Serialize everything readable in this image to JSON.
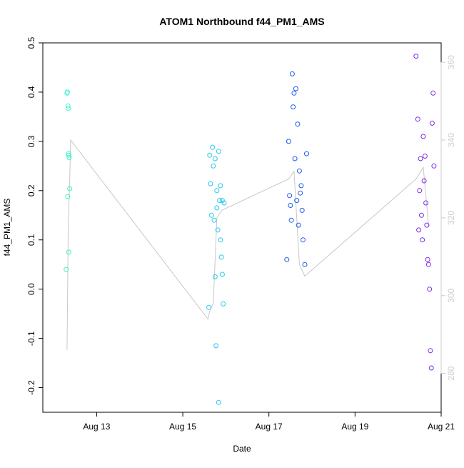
{
  "chart_data": {
    "type": "scatter",
    "title": "ATOM1 Northbound f44_PM1_AMS",
    "xlabel": "Date",
    "ylabel": "f44_PM1_AMS",
    "x_range": [
      "2016-08-11T18:00",
      "2016-08-21T00:00"
    ],
    "x_ticks": [
      "Aug 13",
      "Aug 15",
      "Aug 17",
      "Aug 19",
      "Aug 21"
    ],
    "ylim": [
      -0.25,
      0.5
    ],
    "y_ticks": [
      "-0.2",
      "-0.1",
      "0.0",
      "0.1",
      "0.2",
      "0.3",
      "0.4",
      "0.5"
    ],
    "y2lim": [
      270,
      365
    ],
    "y2_ticks": [
      "280",
      "300",
      "320",
      "340",
      "360"
    ],
    "y2_color": "#cccccc",
    "line_color": "#c8c8c8",
    "marker": "open-circle",
    "grid": false,
    "point_colors": [
      "#3cf5c8",
      "#25c8f0",
      "#1e5af0",
      "#7a2ae6"
    ],
    "altitude_series": [
      [
        "2016-08-12T07:30",
        286
      ],
      [
        "2016-08-12T08:10",
        318
      ],
      [
        "2016-08-12T09:00",
        330
      ],
      [
        "2016-08-12T09:30",
        340
      ],
      [
        "2016-08-15T14:00",
        294
      ],
      [
        "2016-08-15T15:00",
        296
      ],
      [
        "2016-08-15T17:00",
        298
      ],
      [
        "2016-08-15T19:00",
        320
      ],
      [
        "2016-08-15T22:00",
        322
      ],
      [
        "2016-08-17T11:00",
        330
      ],
      [
        "2016-08-17T14:00",
        332
      ],
      [
        "2016-08-17T17:00",
        308
      ],
      [
        "2016-08-17T20:00",
        305
      ],
      [
        "2016-08-20T10:00",
        330
      ],
      [
        "2016-08-20T14:00",
        333
      ],
      [
        "2016-08-20T17:00",
        318
      ]
    ],
    "points": [
      [
        "2016-08-12T07:00",
        0.04
      ],
      [
        "2016-08-12T07:30",
        0.398
      ],
      [
        "2016-08-12T07:40",
        0.4
      ],
      [
        "2016-08-12T08:00",
        0.372
      ],
      [
        "2016-08-12T08:10",
        0.367
      ],
      [
        "2016-08-12T08:20",
        0.275
      ],
      [
        "2016-08-12T08:30",
        0.272
      ],
      [
        "2016-08-12T08:40",
        0.267
      ],
      [
        "2016-08-12T07:50",
        0.188
      ],
      [
        "2016-08-12T09:00",
        0.204
      ],
      [
        "2016-08-12T08:30",
        0.075
      ],
      [
        "2016-08-15T14:30",
        -0.037
      ],
      [
        "2016-08-15T15:00",
        0.272
      ],
      [
        "2016-08-15T15:30",
        0.214
      ],
      [
        "2016-08-15T16:00",
        0.15
      ],
      [
        "2016-08-15T16:30",
        0.288
      ],
      [
        "2016-08-15T17:00",
        0.25
      ],
      [
        "2016-08-15T17:30",
        0.14
      ],
      [
        "2016-08-15T18:00",
        0.025
      ],
      [
        "2016-08-15T18:30",
        -0.115
      ],
      [
        "2016-08-15T19:00",
        0.2
      ],
      [
        "2016-08-15T19:30",
        0.12
      ],
      [
        "2016-08-15T20:00",
        0.28
      ],
      [
        "2016-08-15T20:30",
        0.18
      ],
      [
        "2016-08-15T21:00",
        0.1
      ],
      [
        "2016-08-15T21:30",
        0.065
      ],
      [
        "2016-08-15T22:00",
        0.03
      ],
      [
        "2016-08-15T22:30",
        -0.03
      ],
      [
        "2016-08-15T23:00",
        0.175
      ],
      [
        "2016-08-15T20:00",
        -0.23
      ],
      [
        "2016-08-15T18:00",
        0.265
      ],
      [
        "2016-08-15T19:00",
        0.165
      ],
      [
        "2016-08-15T21:00",
        0.21
      ],
      [
        "2016-08-15T22:00",
        0.18
      ],
      [
        "2016-08-17T10:00",
        0.06
      ],
      [
        "2016-08-17T11:00",
        0.3
      ],
      [
        "2016-08-17T12:00",
        0.17
      ],
      [
        "2016-08-17T13:00",
        0.437
      ],
      [
        "2016-08-17T14:00",
        0.398
      ],
      [
        "2016-08-17T15:00",
        0.407
      ],
      [
        "2016-08-17T16:00",
        0.335
      ],
      [
        "2016-08-17T17:00",
        0.24
      ],
      [
        "2016-08-17T18:00",
        0.21
      ],
      [
        "2016-08-17T19:00",
        0.1
      ],
      [
        "2016-08-17T20:00",
        0.05
      ],
      [
        "2016-08-17T21:00",
        0.275
      ],
      [
        "2016-08-17T13:30",
        0.37
      ],
      [
        "2016-08-17T14:30",
        0.265
      ],
      [
        "2016-08-17T15:30",
        0.18
      ],
      [
        "2016-08-17T16:30",
        0.13
      ],
      [
        "2016-08-17T17:30",
        0.195
      ],
      [
        "2016-08-17T18:30",
        0.16
      ],
      [
        "2016-08-17T12:30",
        0.14
      ],
      [
        "2016-08-17T11:30",
        0.19
      ],
      [
        "2016-08-20T10:00",
        0.473
      ],
      [
        "2016-08-20T11:00",
        0.345
      ],
      [
        "2016-08-20T12:00",
        0.2
      ],
      [
        "2016-08-20T13:00",
        0.15
      ],
      [
        "2016-08-20T14:00",
        0.31
      ],
      [
        "2016-08-20T15:00",
        0.27
      ],
      [
        "2016-08-20T16:00",
        0.13
      ],
      [
        "2016-08-20T17:00",
        0.05
      ],
      [
        "2016-08-20T18:00",
        -0.125
      ],
      [
        "2016-08-20T18:30",
        -0.16
      ],
      [
        "2016-08-20T19:00",
        0.337
      ],
      [
        "2016-08-20T19:30",
        0.398
      ],
      [
        "2016-08-20T20:00",
        0.25
      ],
      [
        "2016-08-20T13:30",
        0.1
      ],
      [
        "2016-08-20T14:30",
        0.22
      ],
      [
        "2016-08-20T15:30",
        0.175
      ],
      [
        "2016-08-20T16:30",
        0.06
      ],
      [
        "2016-08-20T17:30",
        0.0
      ],
      [
        "2016-08-20T12:30",
        0.265
      ],
      [
        "2016-08-20T11:30",
        0.12
      ]
    ]
  }
}
